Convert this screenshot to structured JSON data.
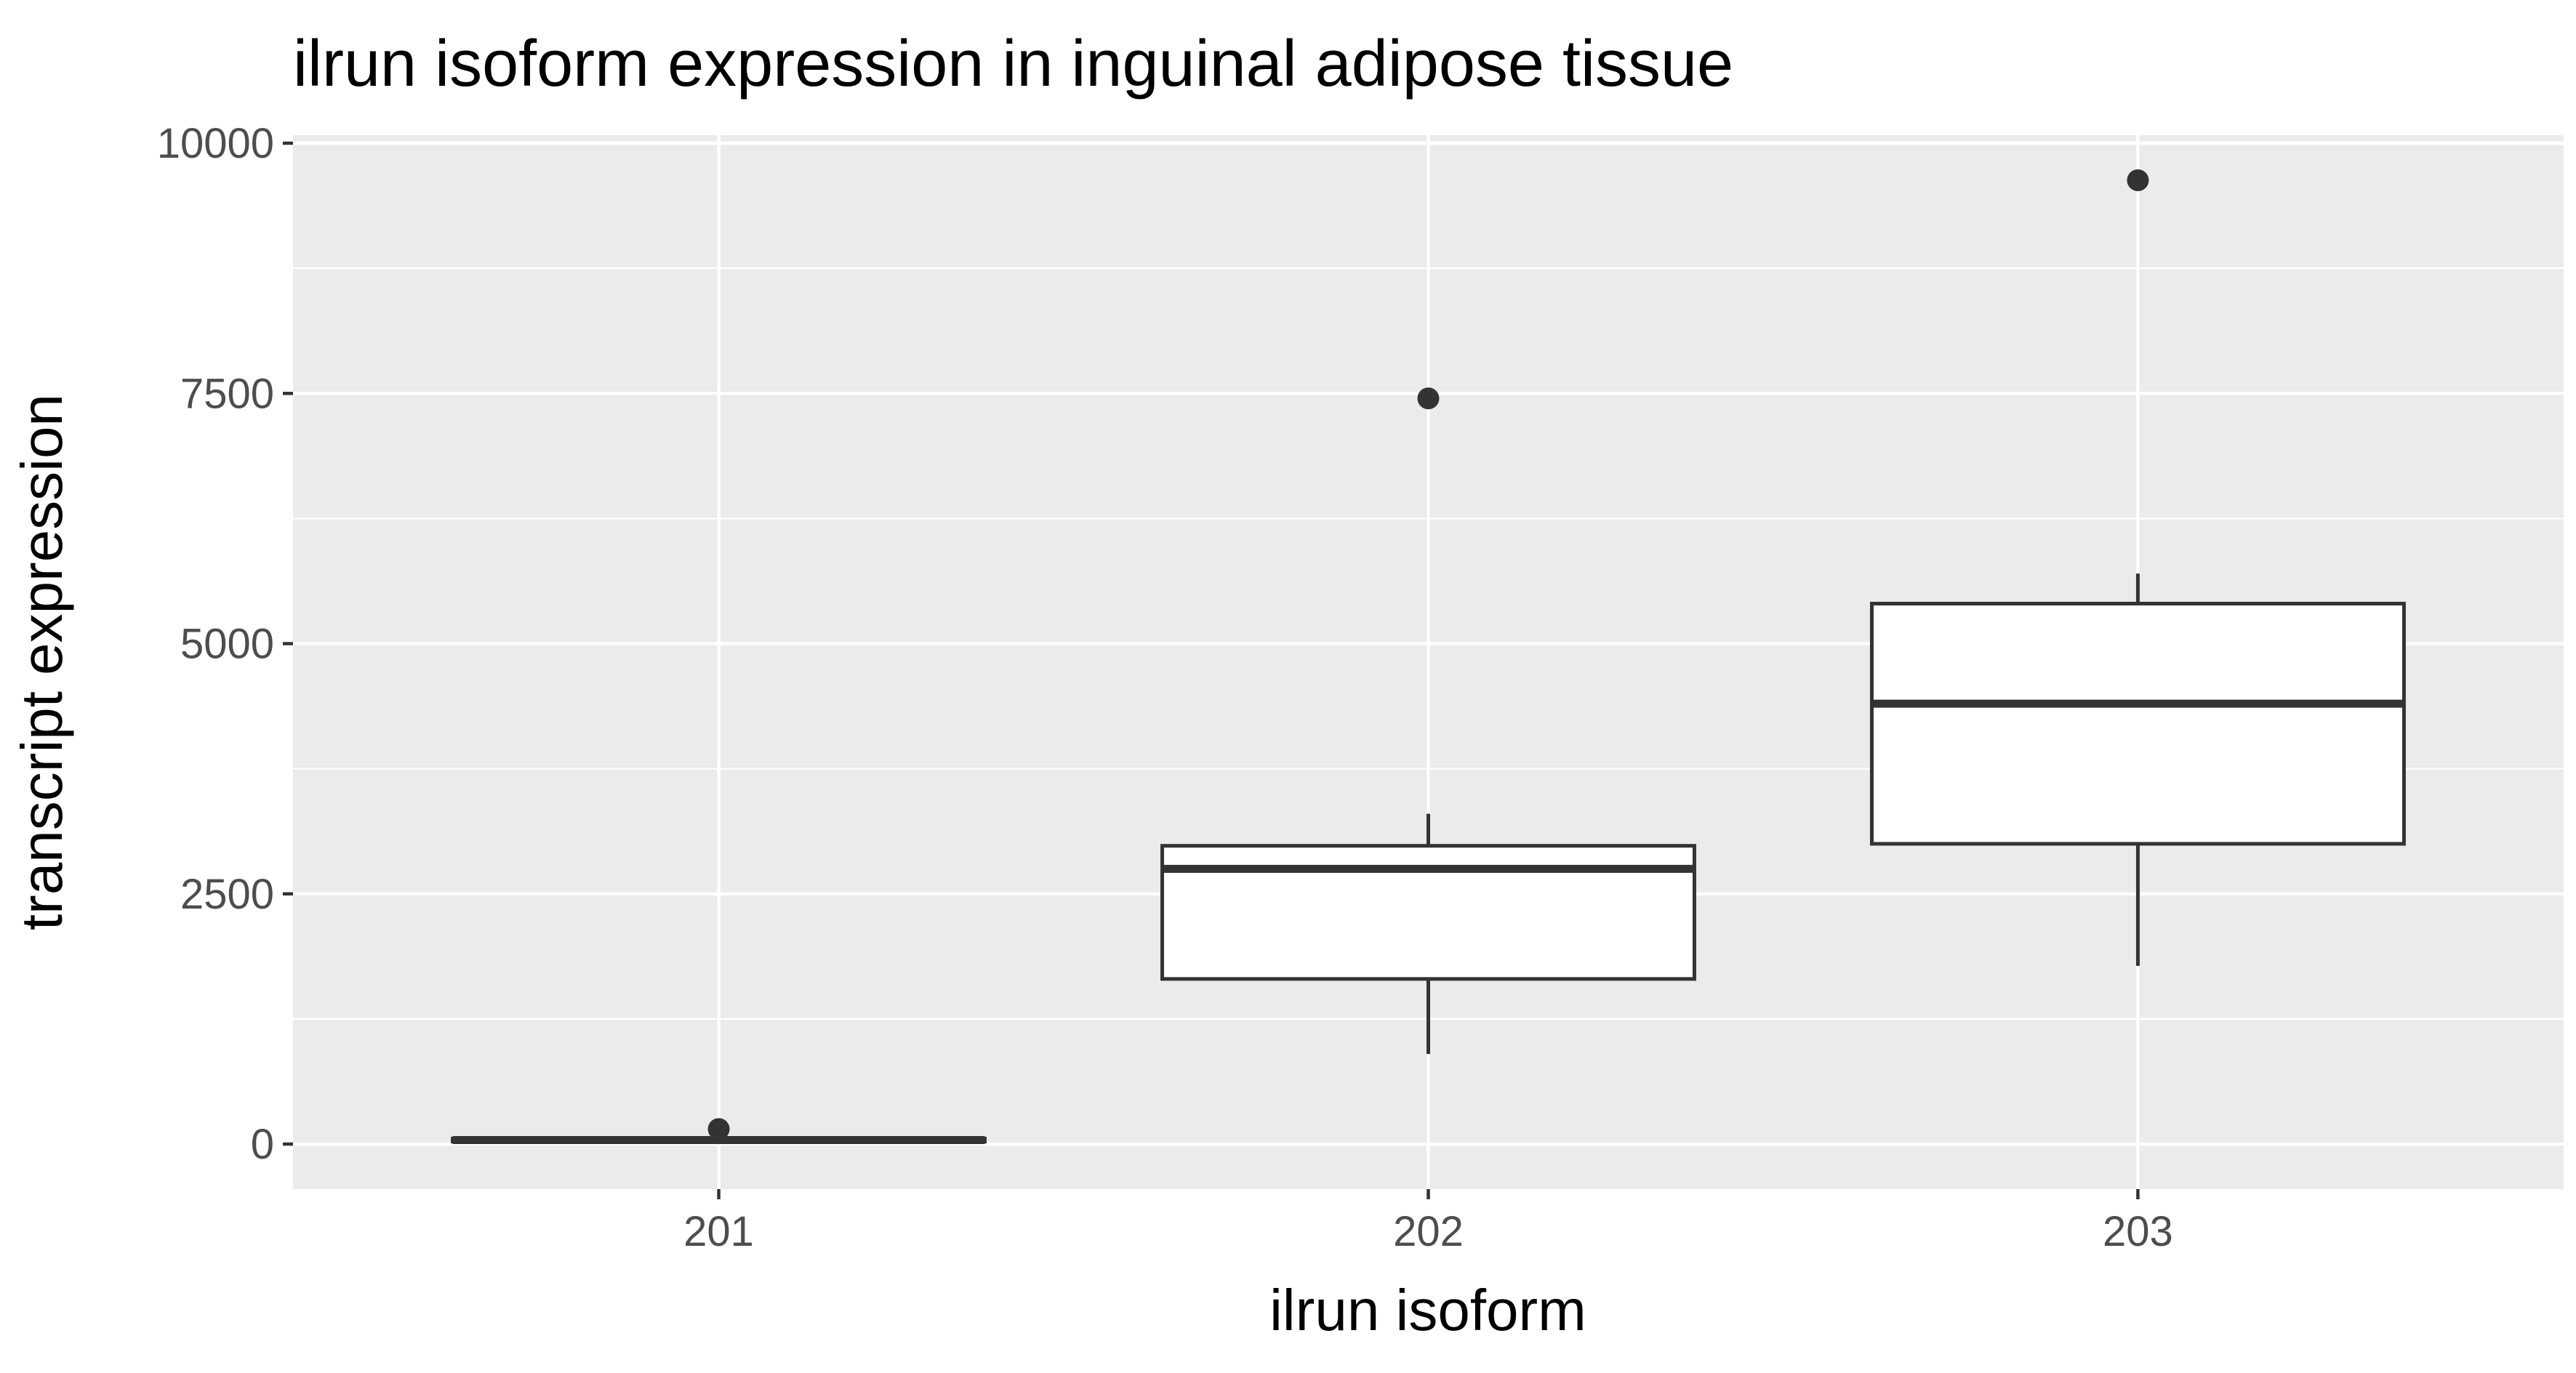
{
  "chart_data": {
    "type": "boxplot",
    "title": "ilrun isoform expression in inguinal adipose tissue",
    "xlabel": "ilrun isoform",
    "ylabel": "transcript expression",
    "categories": [
      "201",
      "202",
      "203"
    ],
    "ylim": [
      -450,
      10080
    ],
    "yticks": [
      0,
      2500,
      5000,
      7500,
      10000
    ],
    "ytick_labels": [
      "0",
      "2500",
      "5000",
      "7500",
      "10000"
    ],
    "grid": true,
    "legend": "none",
    "colors": {
      "panel": "#ebebeb",
      "grid": "#ffffff",
      "box_fill": "#ffffff",
      "box_line": "#333333",
      "outlier": "#333333",
      "tick_text": "#4d4d4d",
      "title_text": "#000000"
    },
    "boxes": [
      {
        "category": "201",
        "min": 5,
        "q1": 25,
        "median": 40,
        "q3": 55,
        "max": 70,
        "outliers": [
          150
        ]
      },
      {
        "category": "202",
        "min": 900,
        "q1": 1650,
        "median": 2750,
        "q3": 2980,
        "max": 3300,
        "outliers": [
          7450
        ]
      },
      {
        "category": "203",
        "min": 1780,
        "q1": 3000,
        "median": 4400,
        "q3": 5400,
        "max": 5700,
        "outliers": [
          9630
        ]
      }
    ]
  }
}
